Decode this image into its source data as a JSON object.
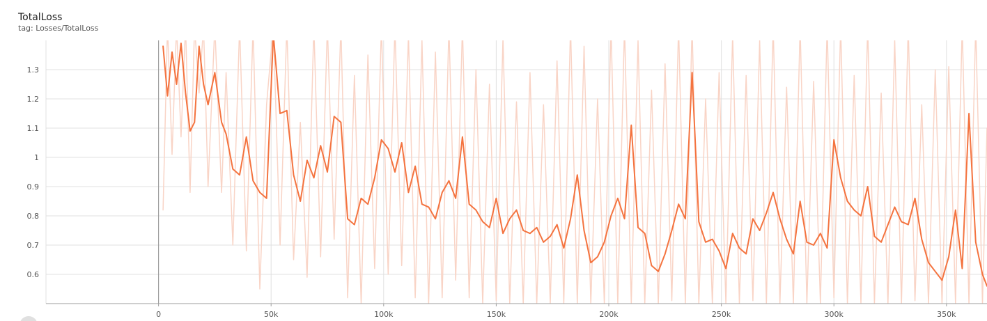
{
  "card": {
    "title": "TotalLoss",
    "subtitle": "tag: Losses/TotalLoss"
  },
  "chart_data": {
    "type": "line",
    "title": "TotalLoss",
    "subtitle": "tag: Losses/TotalLoss",
    "xlabel": "",
    "ylabel": "",
    "xlim": [
      -50000,
      368000
    ],
    "ylim": [
      0.5,
      1.4
    ],
    "grid": true,
    "legend": "none",
    "x_ticks": [
      0,
      50000,
      100000,
      150000,
      200000,
      250000,
      300000,
      350000
    ],
    "x_tick_labels": [
      "0",
      "50k",
      "100k",
      "150k",
      "200k",
      "250k",
      "300k",
      "350k"
    ],
    "y_ticks": [
      0.6,
      0.7,
      0.8,
      0.9,
      1.0,
      1.1,
      1.2,
      1.3
    ],
    "y_tick_labels": [
      "0.6",
      "0.7",
      "0.8",
      "0.9",
      "1",
      "1.1",
      "1.2",
      "1.3"
    ],
    "colors": {
      "smoothed": "#f4733f",
      "raw": "#f9d4c6",
      "grid": "#e0e0e0",
      "axis": "#9e9e9e"
    },
    "series": [
      {
        "style": "smoothed",
        "x": [
          2000,
          4000,
          6000,
          8000,
          10000,
          12000,
          14000,
          16000,
          18000,
          20000,
          22000,
          25000,
          28000,
          30000,
          33000,
          36000,
          39000,
          42000,
          45000,
          48000,
          51000,
          54000,
          57000,
          60000,
          63000,
          66000,
          69000,
          72000,
          75000,
          78000,
          81000,
          84000,
          87000,
          90000,
          93000,
          96000,
          99000,
          102000,
          105000,
          108000,
          111000,
          114000,
          117000,
          120000,
          123000,
          126000,
          129000,
          132000,
          135000,
          138000,
          141000,
          144000,
          147000,
          150000,
          153000,
          156000,
          159000,
          162000,
          165000,
          168000,
          171000,
          174000,
          177000,
          180000,
          183000,
          186000,
          189000,
          192000,
          195000,
          198000,
          201000,
          204000,
          207000,
          210000,
          213000,
          216000,
          219000,
          222000,
          225000,
          228000,
          231000,
          234000,
          237000,
          240000,
          243000,
          246000,
          249000,
          252000,
          255000,
          258000,
          261000,
          264000,
          267000,
          270000,
          273000,
          276000,
          279000,
          282000,
          285000,
          288000,
          291000,
          294000,
          297000,
          300000,
          303000,
          306000,
          309000,
          312000,
          315000,
          318000,
          321000,
          324000,
          327000,
          330000,
          333000,
          336000,
          339000,
          342000,
          345000,
          348000,
          351000,
          354000,
          357000,
          360000,
          363000,
          366000,
          368000
        ],
        "y": [
          1.38,
          1.21,
          1.36,
          1.25,
          1.39,
          1.22,
          1.09,
          1.12,
          1.38,
          1.25,
          1.18,
          1.29,
          1.12,
          1.08,
          0.96,
          0.94,
          1.07,
          0.92,
          0.88,
          0.86,
          1.42,
          1.15,
          1.16,
          0.94,
          0.85,
          0.99,
          0.93,
          1.04,
          0.95,
          1.14,
          1.12,
          0.79,
          0.77,
          0.86,
          0.84,
          0.93,
          1.06,
          1.03,
          0.95,
          1.05,
          0.88,
          0.97,
          0.84,
          0.83,
          0.79,
          0.88,
          0.92,
          0.86,
          1.07,
          0.84,
          0.82,
          0.78,
          0.76,
          0.86,
          0.74,
          0.79,
          0.82,
          0.75,
          0.74,
          0.76,
          0.71,
          0.73,
          0.77,
          0.69,
          0.79,
          0.94,
          0.75,
          0.64,
          0.66,
          0.71,
          0.8,
          0.86,
          0.79,
          1.11,
          0.76,
          0.74,
          0.63,
          0.61,
          0.67,
          0.75,
          0.84,
          0.79,
          1.29,
          0.78,
          0.71,
          0.72,
          0.68,
          0.62,
          0.74,
          0.69,
          0.67,
          0.79,
          0.75,
          0.81,
          0.88,
          0.79,
          0.72,
          0.67,
          0.85,
          0.71,
          0.7,
          0.74,
          0.69,
          1.06,
          0.93,
          0.85,
          0.82,
          0.8,
          0.9,
          0.73,
          0.71,
          0.77,
          0.83,
          0.78,
          0.77,
          0.86,
          0.72,
          0.64,
          0.61,
          0.58,
          0.66,
          0.82,
          0.62,
          1.15,
          0.71,
          0.6,
          0.56
        ],
        "color": "#f4733f"
      },
      {
        "style": "raw",
        "x": [
          2000,
          4000,
          6000,
          8000,
          10000,
          12000,
          14000,
          16000,
          18000,
          20000,
          22000,
          25000,
          28000,
          30000,
          33000,
          36000,
          39000,
          42000,
          45000,
          48000,
          51000,
          54000,
          57000,
          60000,
          63000,
          66000,
          69000,
          72000,
          75000,
          78000,
          81000,
          84000,
          87000,
          90000,
          93000,
          96000,
          99000,
          102000,
          105000,
          108000,
          111000,
          114000,
          117000,
          120000,
          123000,
          126000,
          129000,
          132000,
          135000,
          138000,
          141000,
          144000,
          147000,
          150000,
          153000,
          156000,
          159000,
          162000,
          165000,
          168000,
          171000,
          174000,
          177000,
          180000,
          183000,
          186000,
          189000,
          192000,
          195000,
          198000,
          201000,
          204000,
          207000,
          210000,
          213000,
          216000,
          219000,
          222000,
          225000,
          228000,
          231000,
          234000,
          237000,
          240000,
          243000,
          246000,
          249000,
          252000,
          255000,
          258000,
          261000,
          264000,
          267000,
          270000,
          273000,
          276000,
          279000,
          282000,
          285000,
          288000,
          291000,
          294000,
          297000,
          300000,
          303000,
          306000,
          309000,
          312000,
          315000,
          318000,
          321000,
          324000,
          327000,
          330000,
          333000,
          336000,
          339000,
          342000,
          345000,
          348000,
          351000,
          354000,
          357000,
          360000,
          363000,
          366000,
          368000
        ],
        "y": [
          0.82,
          1.45,
          1.01,
          1.45,
          1.07,
          1.45,
          0.88,
          1.45,
          1.22,
          1.45,
          0.9,
          1.45,
          0.88,
          1.29,
          0.7,
          1.45,
          0.68,
          1.45,
          0.55,
          1.18,
          1.45,
          0.7,
          1.45,
          0.65,
          1.12,
          0.59,
          1.45,
          0.66,
          1.45,
          0.72,
          1.45,
          0.52,
          1.28,
          0.5,
          1.35,
          0.62,
          1.45,
          0.6,
          1.45,
          0.63,
          1.42,
          0.52,
          1.4,
          0.5,
          1.36,
          0.52,
          1.45,
          0.58,
          1.45,
          0.52,
          1.3,
          0.5,
          1.25,
          0.51,
          1.41,
          0.5,
          1.19,
          0.5,
          1.29,
          0.5,
          1.18,
          0.5,
          1.33,
          0.5,
          1.45,
          0.5,
          1.38,
          0.5,
          1.2,
          0.5,
          1.45,
          0.5,
          1.45,
          0.5,
          1.4,
          0.5,
          1.23,
          0.5,
          1.32,
          0.51,
          1.45,
          0.5,
          1.45,
          0.5,
          1.2,
          0.5,
          1.29,
          0.5,
          1.42,
          0.5,
          1.28,
          0.51,
          1.4,
          0.5,
          1.45,
          0.5,
          1.24,
          0.5,
          1.45,
          0.5,
          1.26,
          0.5,
          1.45,
          0.52,
          1.45,
          0.5,
          1.28,
          0.5,
          1.45,
          0.5,
          1.22,
          0.5,
          1.4,
          0.5,
          1.45,
          0.51,
          1.18,
          0.5,
          1.3,
          0.5,
          1.31,
          0.5,
          1.45,
          0.5,
          1.45,
          0.5,
          1.1
        ],
        "color": "#f9d4c6"
      }
    ]
  }
}
